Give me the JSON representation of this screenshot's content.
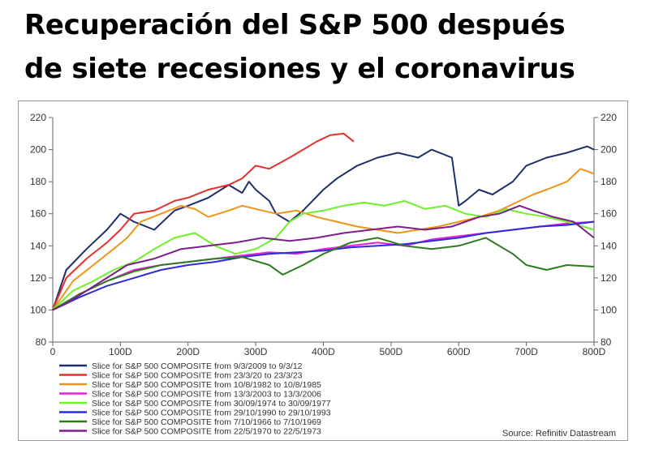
{
  "title_lines": [
    "Recuperación del S&P 500 después",
    "de siete recesiones y el coronavirus"
  ],
  "source": "Source: Refinitiv Datastream",
  "chart_data": {
    "type": "line",
    "xlim": [
      0,
      800
    ],
    "ylim": [
      80,
      220
    ],
    "x_ticks": [
      0,
      100,
      200,
      300,
      400,
      500,
      600,
      700,
      800
    ],
    "x_tick_labels": [
      "0",
      "100D",
      "200D",
      "300D",
      "400D",
      "500D",
      "600D",
      "700D",
      "800D"
    ],
    "y_ticks": [
      80,
      100,
      120,
      140,
      160,
      180,
      200,
      220
    ],
    "y_tick_labels": [
      "80",
      "100",
      "120",
      "140",
      "160",
      "180",
      "200",
      "220"
    ],
    "grid": false,
    "legend_position": "bottom-left",
    "series": [
      {
        "name": "Slice for S&P 500 COMPOSITE from 9/3/2009 to 9/3/12",
        "color": "#1f2f6b",
        "x": [
          0,
          20,
          50,
          80,
          100,
          120,
          150,
          180,
          200,
          230,
          260,
          280,
          290,
          300,
          320,
          330,
          350,
          370,
          400,
          420,
          450,
          480,
          510,
          540,
          560,
          590,
          600,
          610,
          630,
          650,
          680,
          700,
          730,
          760,
          790,
          800
        ],
        "y": [
          100,
          125,
          138,
          150,
          160,
          155,
          150,
          162,
          165,
          170,
          178,
          173,
          180,
          175,
          168,
          160,
          155,
          162,
          175,
          182,
          190,
          195,
          198,
          195,
          200,
          195,
          165,
          168,
          175,
          172,
          180,
          190,
          195,
          198,
          202,
          200
        ]
      },
      {
        "name": "Slice for S&P 500 COMPOSITE from 23/3/20 to 23/3/23",
        "color": "#e8302a",
        "x": [
          0,
          20,
          50,
          80,
          100,
          120,
          150,
          180,
          200,
          230,
          260,
          280,
          300,
          320,
          350,
          370,
          390,
          410,
          430,
          445
        ],
        "y": [
          100,
          120,
          132,
          142,
          150,
          160,
          162,
          168,
          170,
          175,
          178,
          182,
          190,
          188,
          195,
          200,
          205,
          209,
          210,
          205
        ]
      },
      {
        "name": "Slice for S&P 500 COMPOSITE from 10/8/1982 to 10/8/1985",
        "color": "#ee9418",
        "x": [
          0,
          30,
          60,
          90,
          110,
          130,
          160,
          190,
          210,
          230,
          260,
          280,
          300,
          330,
          360,
          390,
          420,
          450,
          480,
          510,
          540,
          570,
          600,
          630,
          660,
          690,
          710,
          730,
          760,
          780,
          800
        ],
        "y": [
          100,
          118,
          128,
          138,
          145,
          155,
          160,
          165,
          163,
          158,
          162,
          165,
          163,
          160,
          162,
          158,
          155,
          152,
          150,
          148,
          150,
          152,
          155,
          158,
          162,
          168,
          172,
          175,
          180,
          188,
          185
        ]
      },
      {
        "name": "Slice for S&P 500 COMPOSITE from 13/3/2003 to 13/3/2006",
        "color": "#ea1ed8",
        "x": [
          0,
          40,
          80,
          120,
          160,
          200,
          240,
          280,
          320,
          360,
          400,
          440,
          480,
          520,
          560,
          600,
          640,
          680,
          720,
          760,
          800
        ],
        "y": [
          100,
          110,
          118,
          125,
          128,
          130,
          132,
          134,
          136,
          135,
          138,
          140,
          142,
          140,
          144,
          146,
          148,
          150,
          152,
          154,
          155
        ]
      },
      {
        "name": "Slice for S&P 500 COMPOSITE from 30/09/1974 to 30/09/1977",
        "color": "#6ff02a",
        "x": [
          0,
          30,
          60,
          90,
          120,
          150,
          180,
          210,
          240,
          270,
          300,
          330,
          350,
          370,
          400,
          430,
          460,
          490,
          520,
          550,
          580,
          610,
          640,
          670,
          700,
          730,
          760,
          800
        ],
        "y": [
          100,
          112,
          118,
          125,
          130,
          138,
          145,
          148,
          140,
          135,
          138,
          145,
          155,
          160,
          162,
          165,
          167,
          165,
          168,
          163,
          165,
          160,
          158,
          163,
          160,
          158,
          155,
          150
        ]
      },
      {
        "name": "Slice for S&P 500 COMPOSITE from 29/10/1990 to 29/10/1993",
        "color": "#2b2bdd",
        "x": [
          0,
          40,
          80,
          120,
          160,
          200,
          240,
          280,
          320,
          360,
          400,
          440,
          480,
          520,
          560,
          600,
          640,
          680,
          720,
          760,
          800
        ],
        "y": [
          100,
          108,
          115,
          120,
          125,
          128,
          130,
          133,
          135,
          136,
          137,
          139,
          140,
          141,
          143,
          145,
          148,
          150,
          152,
          153,
          155
        ]
      },
      {
        "name": "Slice for S&P 500 COMPOSITE from 7/10/1966 to 7/10/1969",
        "color": "#2c7c1f",
        "x": [
          0,
          40,
          80,
          120,
          160,
          200,
          240,
          280,
          320,
          340,
          370,
          400,
          440,
          480,
          520,
          560,
          600,
          640,
          680,
          700,
          730,
          760,
          800
        ],
        "y": [
          100,
          110,
          118,
          124,
          128,
          130,
          132,
          133,
          128,
          122,
          128,
          135,
          142,
          145,
          140,
          138,
          140,
          145,
          135,
          128,
          125,
          128,
          127
        ]
      },
      {
        "name": "Slice for S&P 500 COMPOSITE from 22/5/1970 to 22/5/1973",
        "color": "#7a1f8c",
        "x": [
          0,
          20,
          50,
          80,
          110,
          150,
          190,
          230,
          270,
          310,
          350,
          390,
          430,
          470,
          510,
          550,
          590,
          630,
          660,
          690,
          710,
          740,
          770,
          800
        ],
        "y": [
          100,
          104,
          112,
          120,
          128,
          132,
          138,
          140,
          142,
          145,
          143,
          145,
          148,
          150,
          152,
          150,
          152,
          158,
          160,
          165,
          162,
          158,
          155,
          145
        ]
      }
    ]
  }
}
